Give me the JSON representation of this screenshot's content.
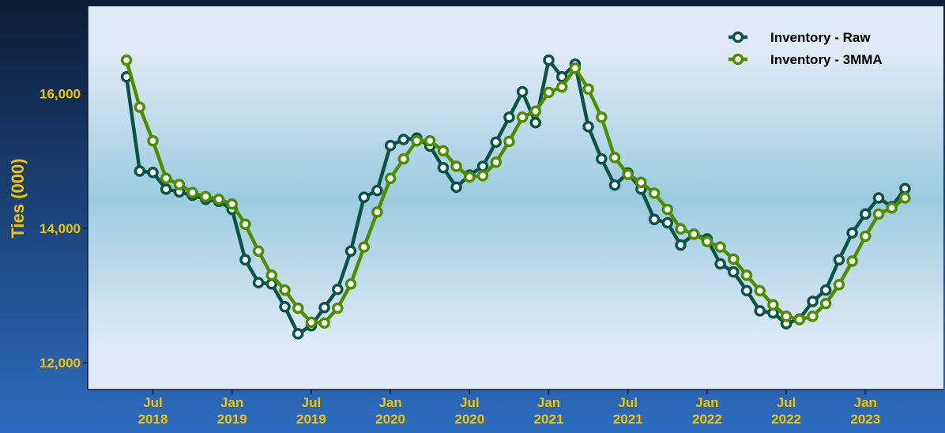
{
  "chart_data": {
    "type": "line",
    "title": "",
    "xlabel": "",
    "ylabel": "Ties (000)",
    "ylim": [
      11600,
      17300
    ],
    "y_ticks": [
      {
        "value": 12000,
        "label": "12,000"
      },
      {
        "value": 14000,
        "label": "14,000"
      },
      {
        "value": 16000,
        "label": "16,000"
      }
    ],
    "x_ticks": [
      {
        "date": "2018-07",
        "month": "Jul",
        "year": "2018"
      },
      {
        "date": "2019-01",
        "month": "Jan",
        "year": "2019"
      },
      {
        "date": "2019-07",
        "month": "Jul",
        "year": "2019"
      },
      {
        "date": "2020-01",
        "month": "Jan",
        "year": "2020"
      },
      {
        "date": "2020-07",
        "month": "Jul",
        "year": "2020"
      },
      {
        "date": "2021-01",
        "month": "Jan",
        "year": "2021"
      },
      {
        "date": "2021-07",
        "month": "Jul",
        "year": "2021"
      },
      {
        "date": "2022-01",
        "month": "Jan",
        "year": "2022"
      },
      {
        "date": "2022-07",
        "month": "Jul",
        "year": "2022"
      },
      {
        "date": "2023-01",
        "month": "Jan",
        "year": "2023"
      }
    ],
    "x": [
      "2018-05",
      "2018-06",
      "2018-07",
      "2018-08",
      "2018-09",
      "2018-10",
      "2018-11",
      "2018-12",
      "2019-01",
      "2019-02",
      "2019-03",
      "2019-04",
      "2019-05",
      "2019-06",
      "2019-07",
      "2019-08",
      "2019-09",
      "2019-10",
      "2019-11",
      "2019-12",
      "2020-01",
      "2020-02",
      "2020-03",
      "2020-04",
      "2020-05",
      "2020-06",
      "2020-07",
      "2020-08",
      "2020-09",
      "2020-10",
      "2020-11",
      "2020-12",
      "2021-01",
      "2021-02",
      "2021-03",
      "2021-04",
      "2021-05",
      "2021-06",
      "2021-07",
      "2021-08",
      "2021-09",
      "2021-10",
      "2021-11",
      "2021-12",
      "2022-01",
      "2022-02",
      "2022-03",
      "2022-04",
      "2022-05",
      "2022-06",
      "2022-07",
      "2022-08",
      "2022-09",
      "2022-10",
      "2022-11",
      "2022-12",
      "2023-01",
      "2023-02",
      "2023-03",
      "2023-04"
    ],
    "series": [
      {
        "name": "Inventory - Raw",
        "color": "#0b5345",
        "values": [
          16250,
          14850,
          14830,
          14580,
          14540,
          14490,
          14430,
          14400,
          14280,
          13530,
          13190,
          13170,
          12830,
          12430,
          12550,
          12820,
          13090,
          13660,
          14460,
          14560,
          15230,
          15320,
          15340,
          15220,
          14900,
          14610,
          14790,
          14920,
          15280,
          15650,
          16030,
          15570,
          16500,
          16250,
          16440,
          15510,
          15030,
          14640,
          14820,
          14580,
          14130,
          14080,
          13750,
          13910,
          13840,
          13470,
          13350,
          13070,
          12770,
          12740,
          12580,
          12650,
          12910,
          13080,
          13530,
          13930,
          14210,
          14450,
          14320,
          14590
        ]
      },
      {
        "name": "Inventory - 3MMA",
        "color": "#4e8d00",
        "values": [
          16500,
          15800,
          15300,
          14740,
          14650,
          14530,
          14470,
          14430,
          14360,
          14060,
          13660,
          13300,
          13080,
          12810,
          12600,
          12590,
          12810,
          13170,
          13720,
          14240,
          14740,
          15030,
          15300,
          15300,
          15150,
          14920,
          14760,
          14780,
          14980,
          15290,
          15650,
          15740,
          16020,
          16100,
          16380,
          16070,
          15650,
          15050,
          14800,
          14680,
          14520,
          14280,
          13990,
          13910,
          13800,
          13720,
          13540,
          13300,
          13070,
          12860,
          12690,
          12640,
          12690,
          12880,
          13160,
          13510,
          13880,
          14210,
          14300,
          14450
        ]
      }
    ],
    "legend_position": "top-right",
    "grid": false,
    "colors": {
      "frame_top": "#0b1c36",
      "frame_bottom": "#2d6cbf",
      "plot_edge": "#dfeaf6",
      "plot_center": "#9ccbe0",
      "tick_text": "#f2c300",
      "axis_line": "#0b1c36"
    }
  }
}
